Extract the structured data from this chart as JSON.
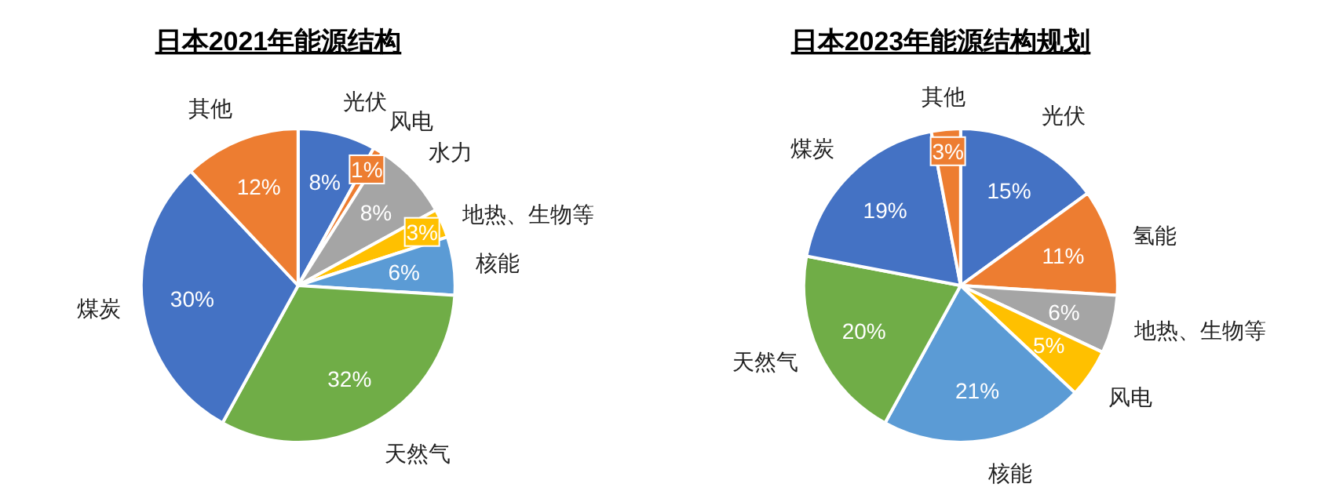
{
  "chart_data": [
    {
      "type": "pie",
      "title": "日本2021年能源结构",
      "categories": [
        "光伏",
        "风电",
        "水力",
        "地热、生物等",
        "核能",
        "天然气",
        "煤炭",
        "其他"
      ],
      "values": [
        8,
        1,
        8,
        3,
        6,
        32,
        30,
        12
      ],
      "value_labels": [
        "8%",
        "1%",
        "8%",
        "3%",
        "6%",
        "32%",
        "30%",
        "12%"
      ],
      "colors": [
        "#4472c4",
        "#ed7d31",
        "#a5a5a5",
        "#ffc000",
        "#5b9bd5",
        "#70ad47",
        "#4472c4",
        "#ed7d31"
      ]
    },
    {
      "type": "pie",
      "title": "日本2023年能源结构规划",
      "categories": [
        "光伏",
        "氢能",
        "地热、生物等",
        "风电",
        "核能",
        "天然气",
        "煤炭",
        "其他"
      ],
      "values": [
        15,
        11,
        6,
        5,
        21,
        20,
        19,
        3
      ],
      "value_labels": [
        "15%",
        "11%",
        "6%",
        "5%",
        "21%",
        "20%",
        "19%",
        "3%"
      ],
      "colors": [
        "#4472c4",
        "#ed7d31",
        "#a5a5a5",
        "#ffc000",
        "#5b9bd5",
        "#70ad47",
        "#4472c4",
        "#ed7d31"
      ]
    }
  ]
}
